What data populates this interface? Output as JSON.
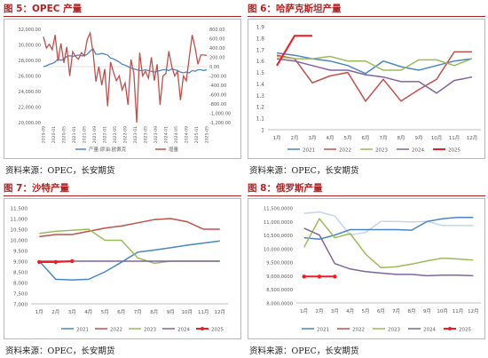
{
  "panels": [
    {
      "title": "图 5：OPEC 产量",
      "source": "资料来源：OPEC，长安期货",
      "chart_data": {
        "type": "line",
        "y_ticks": [
          "32,000.00",
          "30,000.00",
          "28,000.00",
          "26,000.00",
          "24,000.00",
          "22,000.00",
          "20,000.00"
        ],
        "ylim": [
          20000,
          32000
        ],
        "y2_ticks": [
          "800.00",
          "600.00",
          "400.00",
          "200.00",
          "0.00",
          "-200.00",
          "-400.00",
          "-600.00",
          "-800.00",
          "-1,000.00",
          "-1,200.00"
        ],
        "y2lim": [
          -1200,
          800
        ],
        "x_ticks": [
          "2019-09",
          "2020-01",
          "2020-05",
          "2021-01",
          "2021-05",
          "2021-09",
          "2022-01",
          "2022-05",
          "2022-09",
          "2023-01",
          "2023-05",
          "2023-09",
          "2024-01",
          "2024-05",
          "2024-09",
          "2025-01",
          "2025-05"
        ],
        "series": [
          {
            "name": "产量:原油:欧佩克",
            "color": "#4a86c6",
            "axis": "left",
            "values": [
              27200,
              27300,
              27500,
              27600,
              27800,
              28200,
              28000,
              28200,
              28500,
              28600,
              28500,
              28600,
              28700,
              28600,
              28600,
              28800,
              29200,
              29500,
              28800,
              28800,
              28900,
              28800,
              28700,
              28300,
              28200,
              28000,
              27800,
              27500,
              27400,
              27200,
              27000,
              26900,
              26800,
              26700,
              26700,
              26800,
              26700,
              26600,
              26500,
              26600,
              26700,
              26800,
              26800,
              26700,
              26900,
              26800,
              26700,
              26500,
              26400,
              26500,
              26400,
              26700,
              26600,
              26800,
              26800,
              26700,
              26800
            ]
          },
          {
            "name": "增量",
            "color": "#c0504d",
            "axis": "right",
            "values": [
              640,
              400,
              480,
              360,
              680,
              120,
              500,
              80,
              420,
              -200,
              320,
              220,
              160,
              300,
              230,
              580,
              720,
              300,
              -320,
              0,
              -400,
              -50,
              -850,
              100,
              -120,
              -300,
              -200,
              -500,
              -350,
              -820,
              150,
              -150,
              -1200,
              300,
              -200,
              -100,
              -250,
              200,
              -300,
              50,
              -820,
              -200,
              -150,
              330,
              0,
              -200,
              -100,
              -720,
              -200,
              -300,
              200,
              680,
              400,
              50,
              250,
              250,
              240
            ]
          }
        ]
      }
    },
    {
      "title": "图 6：哈萨克斯坦产量",
      "source": "资料来源：OPEC，长安期货",
      "chart_data": {
        "type": "line",
        "y_ticks": [
          "1.9",
          "1.8",
          "1.7",
          "1.6",
          "1.5",
          "1.4",
          "1.3",
          "1.2",
          "1.1",
          "1"
        ],
        "ylim": [
          1.0,
          1.9
        ],
        "categories": [
          "1月",
          "2月",
          "3月",
          "4月",
          "5月",
          "6月",
          "7月",
          "8月",
          "9月",
          "10月",
          "11月",
          "12月"
        ],
        "series": [
          {
            "name": "2021",
            "color": "#4a86c6",
            "values": [
              1.67,
              1.65,
              1.62,
              1.6,
              1.56,
              1.49,
              1.6,
              1.55,
              1.52,
              1.56,
              1.6,
              1.62
            ]
          },
          {
            "name": "2022",
            "color": "#c0504d",
            "values": [
              1.65,
              1.62,
              1.41,
              1.47,
              1.5,
              1.25,
              1.44,
              1.25,
              1.35,
              1.44,
              1.68,
              1.68
            ]
          },
          {
            "name": "2023",
            "color": "#9bbb59",
            "values": [
              1.64,
              1.62,
              1.62,
              1.64,
              1.6,
              1.6,
              1.52,
              1.52,
              1.61,
              1.61,
              1.56,
              1.62
            ]
          },
          {
            "name": "2024",
            "color": "#8064a2",
            "values": [
              1.62,
              1.6,
              1.56,
              1.52,
              1.52,
              1.48,
              1.46,
              1.42,
              1.42,
              1.32,
              1.43,
              1.46
            ]
          },
          {
            "name": "2025",
            "color": "#ee1c25",
            "values": [
              1.56,
              1.82,
              1.82,
              null,
              null,
              null,
              null,
              null,
              null,
              null,
              null,
              null
            ]
          }
        ]
      }
    },
    {
      "title": "图 7：沙特产量",
      "source": "资料来源：OPEC，长安期货",
      "chart_data": {
        "type": "line",
        "y_ticks": [
          "11,500",
          "11,000",
          "10,500",
          "10,000",
          "9,500",
          "9,000",
          "8,500",
          "8,000",
          "7,500",
          "7,000"
        ],
        "ylim": [
          7000,
          11500
        ],
        "categories": [
          "1月",
          "2月",
          "3月",
          "4月",
          "5月",
          "6月",
          "7月",
          "8月",
          "9月",
          "10月",
          "11月",
          "12月"
        ],
        "series": [
          {
            "name": "2021",
            "color": "#4a86c6",
            "values": [
              9000,
              8150,
              8120,
              8150,
              8500,
              8950,
              9420,
              9520,
              9630,
              9750,
              9850,
              9950
            ]
          },
          {
            "name": "2022",
            "color": "#c0504d",
            "values": [
              10150,
              10250,
              10250,
              10400,
              10550,
              10650,
              10800,
              10950,
              11000,
              10850,
              10500,
              10500
            ]
          },
          {
            "name": "2023",
            "color": "#9bbb59",
            "values": [
              10300,
              10400,
              10450,
              10500,
              9980,
              9980,
              9150,
              8900,
              9000,
              9000,
              9000,
              9000
            ]
          },
          {
            "name": "2024",
            "color": "#8064a2",
            "values": [
              9000,
              9000,
              9000,
              9000,
              9000,
              9000,
              9000,
              9000,
              9000,
              9000,
              9000,
              9000
            ]
          },
          {
            "name": "2025",
            "color": "#ee1c25",
            "values": [
              8960,
              8960,
              9000,
              null,
              null,
              null,
              null,
              null,
              null,
              null,
              null,
              null
            ]
          }
        ]
      }
    },
    {
      "title": "图 8：俄罗斯产量",
      "source": "资料来源：OPEC，长安期货",
      "chart_data": {
        "type": "line",
        "y_ticks": [
          "11,500,0000",
          "11,000,0000",
          "10,500,0000",
          "10,000,0000",
          "9,500,0000",
          "9,000,0000",
          "8,500,0000",
          "8,000,0000"
        ],
        "ylim": [
          8000,
          11500
        ],
        "categories": [
          "1月",
          "2月",
          "3月",
          "4月",
          "5月",
          "6月",
          "7月",
          "8月",
          "9月",
          "10月",
          "11月",
          "12月"
        ],
        "series": [
          {
            "name": "2021",
            "color": "#4a86c6",
            "values": [
              10400,
              10350,
              10500,
              10700,
              10700,
              10700,
              10700,
              10680,
              11000,
              11100,
              11150,
              11150
            ]
          },
          {
            "name": "2022",
            "color": "#c0504d",
            "values": [
              10800,
              null,
              null,
              null,
              null,
              null,
              null,
              null,
              null,
              null,
              null,
              null
            ]
          },
          {
            "name": "2023",
            "color": "#9bbb59",
            "values": [
              10050,
              11100,
              10400,
              10550,
              9800,
              9300,
              9330,
              9430,
              9550,
              9650,
              9620,
              9580
            ]
          },
          {
            "name": "2024",
            "color": "#8064a2",
            "values": [
              10750,
              10500,
              9450,
              9250,
              9150,
              9100,
              9050,
              9050,
              9000,
              9020,
              9020,
              9000
            ]
          },
          {
            "name": "2025",
            "color": "#ee1c25",
            "values": [
              8970,
              8970,
              8970,
              null,
              null,
              null,
              null,
              null,
              null,
              null,
              null,
              null
            ]
          }
        ],
        "extra_lines": [
          {
            "name": "2022",
            "color": "#c5d5ea",
            "values": [
              11300,
              11350,
              11200,
              10500,
              10600,
              11000,
              11000,
              10980,
              11000,
              10850,
              10850,
              10850
            ]
          }
        ]
      }
    }
  ]
}
